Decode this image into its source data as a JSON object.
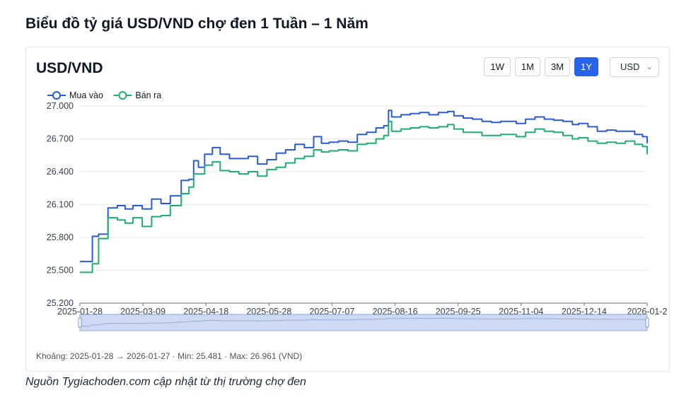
{
  "page": {
    "title": "Biểu đồ tỷ giá USD/VND chợ đen 1 Tuần – 1 Năm",
    "source": "Nguồn Tygiachoden.com cập nhật từ thị trường chợ đen"
  },
  "card": {
    "pair_label": "USD/VND",
    "ranges": [
      "1W",
      "1M",
      "3M",
      "1Y"
    ],
    "active_range": "1Y",
    "currency": "USD",
    "summary": "Khoảng: 2025-01-28 → 2026-01-27 · Min: 25.481 · Max: 26.961 (VND)"
  },
  "chart_data": {
    "type": "line",
    "ylim": [
      25200,
      27000
    ],
    "yticks": [
      "25.200",
      "25.500",
      "25.800",
      "26.100",
      "26.400",
      "26.700",
      "27.000"
    ],
    "xticks": [
      "2025-01-28",
      "2025-03-09",
      "2025-04-18",
      "2025-05-28",
      "2025-07-07",
      "2025-08-16",
      "2025-09-25",
      "2025-11-04",
      "2025-12-14",
      "2026-01-2"
    ],
    "grid": true,
    "legend_position": "top-left",
    "colors": {
      "Mua vào": "#2a5bd7",
      "Bán ra": "#1fae72"
    },
    "x": [
      "2025-01-28",
      "2025-02-03",
      "2025-02-05",
      "2025-02-09",
      "2025-02-15",
      "2025-02-21",
      "2025-02-26",
      "2025-03-03",
      "2025-03-09",
      "2025-03-15",
      "2025-03-21",
      "2025-03-27",
      "2025-04-03",
      "2025-04-08",
      "2025-04-11",
      "2025-04-14",
      "2025-04-18",
      "2025-04-23",
      "2025-04-28",
      "2025-05-04",
      "2025-05-10",
      "2025-05-16",
      "2025-05-22",
      "2025-05-28",
      "2025-06-03",
      "2025-06-09",
      "2025-06-15",
      "2025-06-21",
      "2025-06-27",
      "2025-07-02",
      "2025-07-07",
      "2025-07-13",
      "2025-07-19",
      "2025-07-25",
      "2025-07-31",
      "2025-08-06",
      "2025-08-11",
      "2025-08-14",
      "2025-08-16",
      "2025-08-22",
      "2025-08-28",
      "2025-09-03",
      "2025-09-09",
      "2025-09-15",
      "2025-09-21",
      "2025-09-25",
      "2025-10-01",
      "2025-10-07",
      "2025-10-13",
      "2025-10-19",
      "2025-10-25",
      "2025-11-04",
      "2025-11-10",
      "2025-11-16",
      "2025-11-22",
      "2025-11-28",
      "2025-12-04",
      "2025-12-10",
      "2025-12-14",
      "2025-12-20",
      "2025-12-26",
      "2026-01-01",
      "2026-01-07",
      "2026-01-13",
      "2026-01-19",
      "2026-01-24",
      "2026-01-27"
    ],
    "series": [
      {
        "name": "Mua vào",
        "values": [
          25580,
          25580,
          25810,
          25830,
          26070,
          26090,
          26060,
          26090,
          26060,
          26150,
          26110,
          26180,
          26320,
          26330,
          26500,
          26440,
          26560,
          26620,
          26560,
          26520,
          26520,
          26540,
          26470,
          26510,
          26570,
          26600,
          26650,
          26620,
          26720,
          26660,
          26670,
          26680,
          26670,
          26740,
          26760,
          26800,
          26820,
          26960,
          26900,
          26920,
          26930,
          26940,
          26920,
          26940,
          26950,
          26910,
          26890,
          26880,
          26860,
          26850,
          26860,
          26840,
          26880,
          26900,
          26880,
          26870,
          26860,
          26830,
          26840,
          26810,
          26770,
          26780,
          26770,
          26770,
          26740,
          26720,
          26660
        ]
      },
      {
        "name": "Bán ra",
        "values": [
          25481,
          25481,
          25560,
          25790,
          25980,
          25960,
          25930,
          25980,
          25900,
          25990,
          26000,
          26090,
          26200,
          26260,
          26380,
          26380,
          26460,
          26490,
          26410,
          26400,
          26380,
          26400,
          26360,
          26420,
          26440,
          26480,
          26520,
          26540,
          26600,
          26580,
          26590,
          26600,
          26590,
          26650,
          26660,
          26700,
          26730,
          26860,
          26770,
          26790,
          26800,
          26810,
          26800,
          26810,
          26830,
          26790,
          26760,
          26760,
          26730,
          26730,
          26740,
          26720,
          26760,
          26790,
          26770,
          26760,
          26730,
          26700,
          26710,
          26680,
          26660,
          26670,
          26660,
          26680,
          26650,
          26630,
          26560
        ]
      }
    ]
  }
}
